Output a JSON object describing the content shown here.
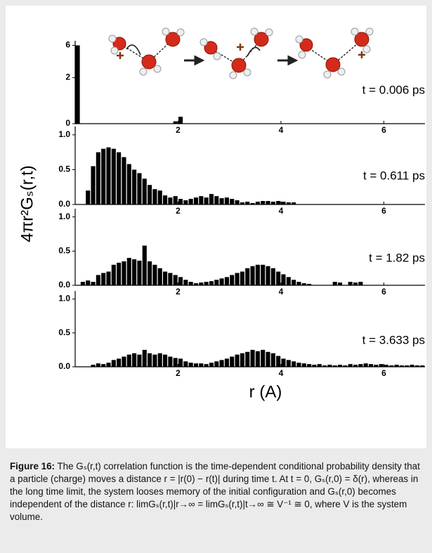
{
  "chart_data": {
    "type": "histogram",
    "xlabel": "r (A)",
    "ylabel": "4πr²Gₛ(r,t)",
    "xlim": [
      0,
      6.8
    ],
    "xticks": [
      2,
      4,
      6
    ],
    "color": "#000000",
    "bins": [
      0,
      0.1,
      0.2,
      0.3,
      0.4,
      0.5,
      0.6,
      0.7,
      0.8,
      0.9,
      1,
      1.1,
      1.2,
      1.3,
      1.4,
      1.5,
      1.6,
      1.7,
      1.8,
      1.9,
      2,
      2.1,
      2.2,
      2.3,
      2.4,
      2.5,
      2.6,
      2.7,
      2.8,
      2.9,
      3,
      3.1,
      3.2,
      3.3,
      3.4,
      3.5,
      3.6,
      3.7,
      3.8,
      3.9,
      4,
      4.1,
      4.2,
      4.3,
      4.4,
      4.5,
      4.6,
      4.7,
      4.8,
      4.9,
      5,
      5.1,
      5.2,
      5.3,
      5.4,
      5.5,
      5.6,
      5.7,
      5.8,
      5.9,
      6,
      6.1,
      6.2,
      6.3,
      6.4,
      6.5,
      6.6,
      6.7,
      6.8
    ],
    "series": [
      {
        "annotation": "t = 0.006 ps",
        "ylim": [
          0,
          6.2
        ],
        "ybreak": [
          3,
          5.6
        ],
        "yticks": [
          0,
          2,
          6
        ],
        "values": [
          6,
          0,
          0,
          0,
          0,
          0,
          0,
          0,
          0,
          0,
          0,
          0,
          0,
          0,
          0,
          0,
          0,
          0,
          0,
          0.1,
          0.3,
          0,
          0,
          0,
          0,
          0,
          0,
          0,
          0,
          0,
          0,
          0,
          0,
          0,
          0,
          0,
          0,
          0,
          0,
          0,
          0,
          0,
          0,
          0,
          0,
          0,
          0,
          0,
          0,
          0,
          0,
          0,
          0,
          0,
          0,
          0,
          0,
          0,
          0,
          0,
          0,
          0,
          0,
          0,
          0,
          0,
          0,
          0
        ]
      },
      {
        "annotation": "t = 0.611 ps",
        "ylim": [
          0,
          1.12
        ],
        "yticks": [
          {
            "value": 0,
            "label": "0.0"
          },
          0.5,
          {
            "value": 1,
            "label": "1.0"
          }
        ],
        "values": [
          0,
          0,
          0.2,
          0.55,
          0.75,
          0.8,
          0.82,
          0.8,
          0.75,
          0.68,
          0.58,
          0.5,
          0.45,
          0.37,
          0.28,
          0.22,
          0.2,
          0.13,
          0.1,
          0.12,
          0.08,
          0.06,
          0.08,
          0.1,
          0.12,
          0.1,
          0.15,
          0.12,
          0.09,
          0.1,
          0.08,
          0.06,
          0.03,
          0.04,
          0.02,
          0.04,
          0.05,
          0.05,
          0.04,
          0.05,
          0.04,
          0.03,
          0.03,
          0,
          0,
          0,
          0,
          0,
          0,
          0,
          0,
          0,
          0,
          0,
          0,
          0,
          0,
          0,
          0,
          0,
          0,
          0,
          0,
          0,
          0,
          0,
          0,
          0
        ]
      },
      {
        "annotation": "t = 1.82 ps",
        "ylim": [
          0,
          1.12
        ],
        "yticks": [
          {
            "value": 0,
            "label": "0.0"
          },
          0.5,
          {
            "value": 1,
            "label": "1.0"
          }
        ],
        "values": [
          0,
          0.05,
          0.07,
          0.05,
          0.15,
          0.18,
          0.2,
          0.3,
          0.33,
          0.35,
          0.4,
          0.38,
          0.36,
          0.58,
          0.35,
          0.3,
          0.25,
          0.2,
          0.18,
          0.15,
          0.12,
          0.08,
          0.05,
          0.03,
          0.04,
          0.05,
          0.06,
          0.08,
          0.1,
          0.12,
          0.15,
          0.18,
          0.2,
          0.25,
          0.28,
          0.3,
          0.3,
          0.28,
          0.25,
          0.2,
          0.16,
          0.12,
          0.08,
          0.05,
          0.03,
          0.02,
          0,
          0,
          0,
          0,
          0.05,
          0.04,
          0,
          0.05,
          0.04,
          0.05,
          0,
          0,
          0,
          0,
          0,
          0,
          0,
          0,
          0,
          0,
          0,
          0
        ]
      },
      {
        "annotation": "t = 3.633 ps",
        "ylim": [
          0,
          1.12
        ],
        "yticks": [
          {
            "value": 0,
            "label": "0.0"
          },
          0.5,
          {
            "value": 1,
            "label": "1.0"
          }
        ],
        "values": [
          0,
          0,
          0,
          0.03,
          0.05,
          0.04,
          0.06,
          0.1,
          0.12,
          0.15,
          0.18,
          0.2,
          0.18,
          0.25,
          0.2,
          0.18,
          0.2,
          0.18,
          0.15,
          0.13,
          0.12,
          0.08,
          0.06,
          0.05,
          0.05,
          0.04,
          0.06,
          0.08,
          0.1,
          0.12,
          0.15,
          0.18,
          0.2,
          0.22,
          0.25,
          0.23,
          0.25,
          0.22,
          0.2,
          0.16,
          0.12,
          0.1,
          0.08,
          0.06,
          0.05,
          0.04,
          0.03,
          0.04,
          0.02,
          0.03,
          0.02,
          0.03,
          0.02,
          0.04,
          0.03,
          0.04,
          0.05,
          0.04,
          0.03,
          0.04,
          0.03,
          0.02,
          0.03,
          0.02,
          0.02,
          0.03,
          0.02,
          0.02
        ]
      }
    ]
  },
  "caption": {
    "label": "Figure 16:",
    "text": "The Gₛ(r,t) correlation function is the time-dependent conditional probability density that a particle (charge) moves a distance r = |r(0) − r(t)| during time t. At t = 0, Gₛ(r,0) = δ(r), whereas in the long time limit, the system looses memory of the initial configuration and Gₛ(r,0) becomes independent of the distance r: limGₛ(r,t)|r→∞ = limGₛ(r,t)|t→∞ ≅ V⁻¹ ≅ 0, where V is the system volume."
  }
}
